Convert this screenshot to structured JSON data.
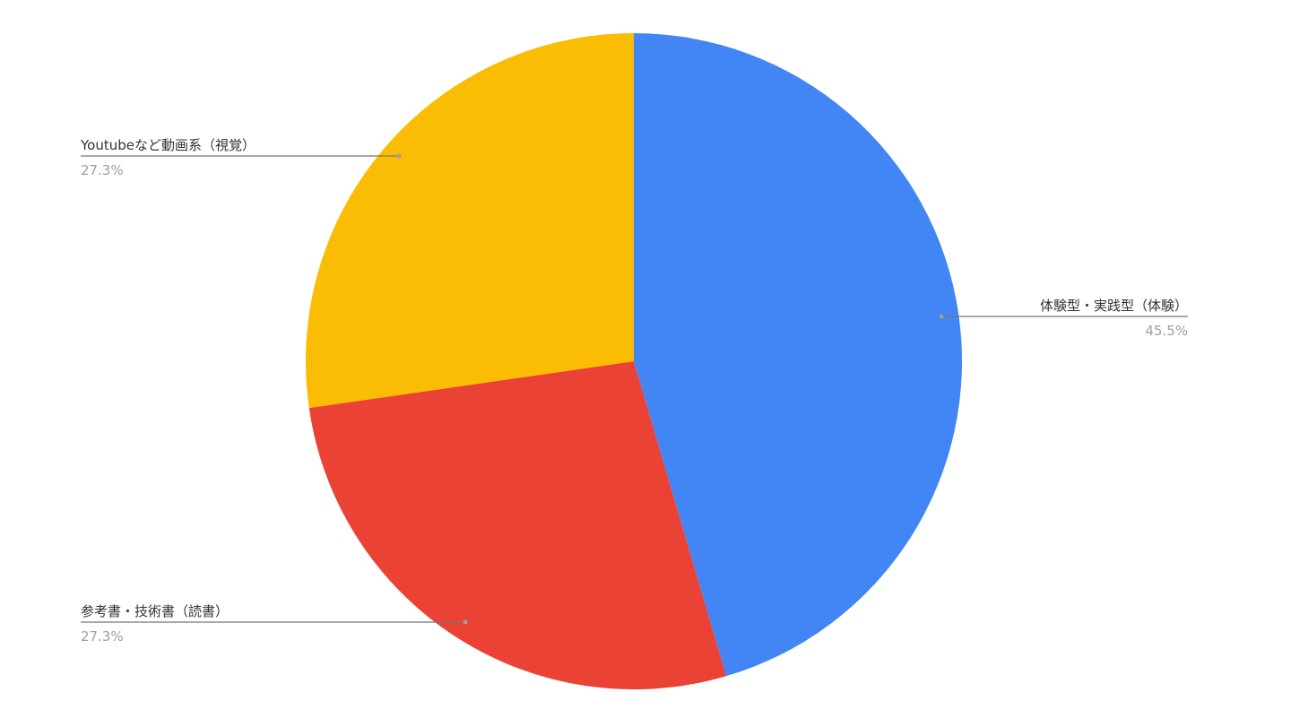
{
  "chart_data": {
    "type": "pie",
    "start_angle_deg": 0,
    "direction": "clockwise",
    "legend": "none",
    "slices": [
      {
        "label": "体験型・実践型（体験）",
        "value": 45.5,
        "display": "45.5%",
        "color": "#4285f4"
      },
      {
        "label": "参考書・技術書（読書）",
        "value": 27.3,
        "display": "27.3%",
        "color": "#ea4335"
      },
      {
        "label": "Youtubeなど動画系（視覚）",
        "value": 27.3,
        "display": "27.3%",
        "color": "#fbbc04"
      }
    ]
  }
}
